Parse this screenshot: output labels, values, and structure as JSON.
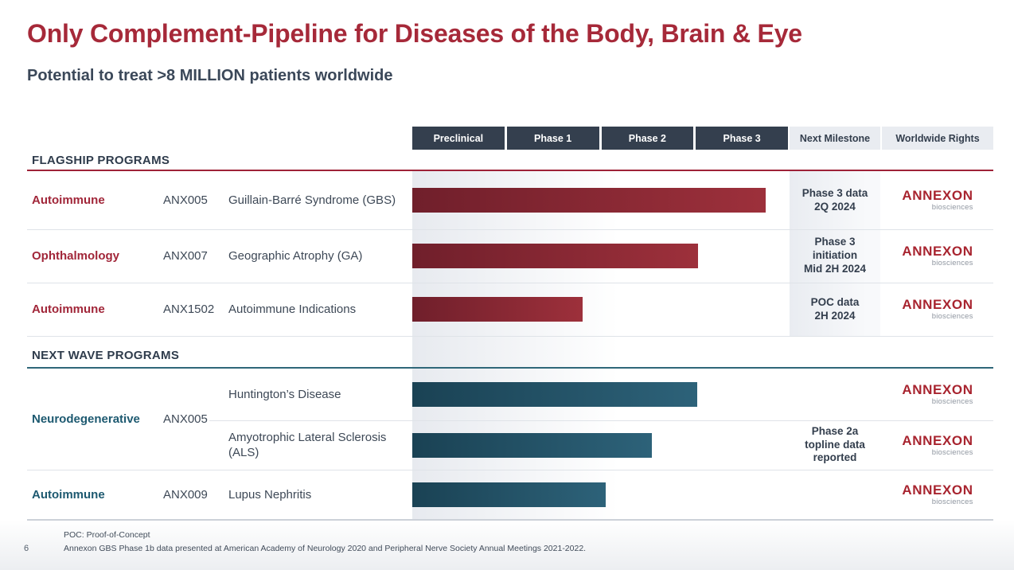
{
  "slide": {
    "title": "Only Complement-Pipeline for Diseases of the Body, Brain & Eye",
    "subtitle": "Potential to treat >8 MILLION patients worldwide",
    "page_number": "6",
    "footnote_line1": "POC: Proof-of-Concept",
    "footnote_line2": "Annexon GBS Phase 1b data presented at American Academy of Neurology 2020 and Peripheral Nerve Society Annual Meetings 2021-2022."
  },
  "header": {
    "phases": [
      "Preclinical",
      "Phase 1",
      "Phase 2",
      "Phase 3"
    ],
    "next_milestone_label": "Next Milestone",
    "worldwide_rights_label": "Worldwide Rights"
  },
  "logo": {
    "name": "ANNEXON",
    "tagline": "biosciences"
  },
  "colors": {
    "title_red": "#a62939",
    "flagship_accent": "#9e2238",
    "next_wave_accent": "#2f6779",
    "bar_red_start": "#701f2b",
    "bar_red_end": "#9d303b",
    "bar_teal_start": "#1a4254",
    "bar_teal_end": "#2d6279",
    "header_box": "#343f4e",
    "slate_text": "#3d4856"
  },
  "sections": [
    {
      "label": "FLAGSHIP PROGRAMS",
      "rows": [
        {
          "category": "Autoimmune",
          "program": "ANX005",
          "indication": "Guillain-Barré Syndrome (GBS)",
          "bar_pct": 94,
          "milestone": "Phase 3 data\n2Q 2024"
        },
        {
          "category": "Ophthalmology",
          "program": "ANX007",
          "indication": "Geographic Atrophy (GA)",
          "bar_pct": 76,
          "milestone": "Phase 3\ninitiation\nMid 2H 2024"
        },
        {
          "category": "Autoimmune",
          "program": "ANX1502",
          "indication": "Autoimmune Indications",
          "bar_pct": 45.3,
          "milestone": "POC data\n2H 2024"
        }
      ]
    },
    {
      "label": "NEXT WAVE PROGRAMS",
      "group": {
        "category": "Neurodegenerative",
        "program": "ANX005"
      },
      "rows": [
        {
          "indication": "Huntington’s Disease",
          "bar_pct": 75.8,
          "milestone": ""
        },
        {
          "indication": "Amyotrophic Lateral Sclerosis (ALS)",
          "bar_pct": 63.8,
          "milestone": "Phase 2a\ntopline data\nreported"
        },
        {
          "category": "Autoimmune",
          "program": "ANX009",
          "indication": "Lupus Nephritis",
          "bar_pct": 51.5,
          "milestone": ""
        }
      ]
    }
  ],
  "chart_data": {
    "type": "bar",
    "orientation": "horizontal",
    "title": "Only Complement-Pipeline for Diseases of the Body, Brain & Eye",
    "subtitle": "Potential to treat >8 MILLION patients worldwide",
    "stage_axis": [
      "Preclinical",
      "Phase 1",
      "Phase 2",
      "Phase 3"
    ],
    "xlim": [
      0,
      4
    ],
    "series": [
      {
        "section": "FLAGSHIP PROGRAMS",
        "category": "Autoimmune",
        "program": "ANX005",
        "indication": "Guillain-Barré Syndrome (GBS)",
        "stage_progress": 3.76,
        "next_milestone": "Phase 3 data 2Q 2024",
        "worldwide_rights": "ANNEXON biosciences",
        "bar_color": "red"
      },
      {
        "section": "FLAGSHIP PROGRAMS",
        "category": "Ophthalmology",
        "program": "ANX007",
        "indication": "Geographic Atrophy (GA)",
        "stage_progress": 3.05,
        "next_milestone": "Phase 3 initiation Mid 2H 2024",
        "worldwide_rights": "ANNEXON biosciences",
        "bar_color": "red"
      },
      {
        "section": "FLAGSHIP PROGRAMS",
        "category": "Autoimmune",
        "program": "ANX1502",
        "indication": "Autoimmune Indications",
        "stage_progress": 1.81,
        "next_milestone": "POC data 2H 2024",
        "worldwide_rights": "ANNEXON biosciences",
        "bar_color": "red"
      },
      {
        "section": "NEXT WAVE PROGRAMS",
        "category": "Neurodegenerative",
        "program": "ANX005",
        "indication": "Huntington’s Disease",
        "stage_progress": 3.03,
        "next_milestone": "",
        "worldwide_rights": "ANNEXON biosciences",
        "bar_color": "teal"
      },
      {
        "section": "NEXT WAVE PROGRAMS",
        "category": "Neurodegenerative",
        "program": "ANX005",
        "indication": "Amyotrophic Lateral Sclerosis (ALS)",
        "stage_progress": 2.55,
        "next_milestone": "Phase 2a topline data reported",
        "worldwide_rights": "ANNEXON biosciences",
        "bar_color": "teal"
      },
      {
        "section": "NEXT WAVE PROGRAMS",
        "category": "Autoimmune",
        "program": "ANX009",
        "indication": "Lupus Nephritis",
        "stage_progress": 2.06,
        "next_milestone": "",
        "worldwide_rights": "ANNEXON biosciences",
        "bar_color": "teal"
      }
    ]
  }
}
